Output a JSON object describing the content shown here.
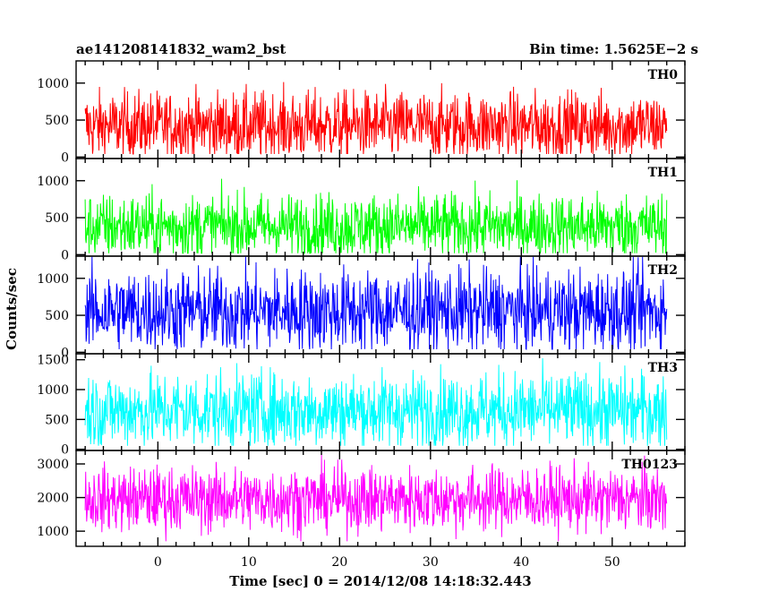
{
  "chart_data": {
    "type": "line",
    "title": "ae141208141832_wam2_bst",
    "subtitle": "Bin time: 1.5625E−2 s",
    "xlabel": "Time [sec] 0 = 2014/12/08 14:18:32.443",
    "ylabel": "Counts/sec",
    "xlim": [
      -9,
      58
    ],
    "xticks": [
      0,
      10,
      20,
      30,
      40,
      50
    ],
    "xrange_data": [
      -8,
      56
    ],
    "grid": false,
    "panels": [
      {
        "name": "TH0",
        "color": "#ff0000",
        "ylim": [
          -20,
          1300
        ],
        "yticks": [
          0,
          500,
          1000
        ],
        "mean": 420,
        "spread": 230,
        "min": 40,
        "max": 1260
      },
      {
        "name": "TH1",
        "color": "#00ff00",
        "ylim": [
          -20,
          1300
        ],
        "yticks": [
          0,
          500,
          1000
        ],
        "mean": 380,
        "spread": 220,
        "min": 20,
        "max": 1250
      },
      {
        "name": "TH2",
        "color": "#0000ff",
        "ylim": [
          -20,
          1300
        ],
        "yticks": [
          0,
          500,
          1000
        ],
        "mean": 560,
        "spread": 280,
        "min": 40,
        "max": 1290
      },
      {
        "name": "TH3",
        "color": "#00ffff",
        "ylim": [
          -20,
          1600
        ],
        "yticks": [
          0,
          500,
          1000,
          1500
        ],
        "mean": 650,
        "spread": 320,
        "min": 60,
        "max": 1580
      },
      {
        "name": "TH0123",
        "color": "#ff00ff",
        "ylim": [
          550,
          3400
        ],
        "yticks": [
          1000,
          2000,
          3000
        ],
        "mean": 1950,
        "spread": 480,
        "min": 700,
        "max": 3350
      }
    ]
  }
}
